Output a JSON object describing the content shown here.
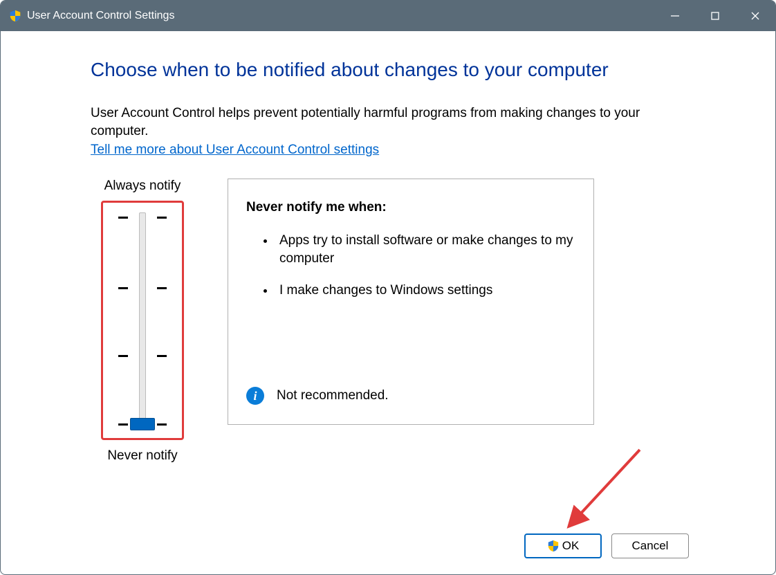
{
  "window": {
    "title": "User Account Control Settings",
    "titlebar_bg": "#5a6b78",
    "titlebar_fg": "#ffffff"
  },
  "heading": "Choose when to be notified about changes to your computer",
  "intro_text": "User Account Control helps prevent potentially harmful programs from making changes to your computer.",
  "help_link_text": "Tell me more about User Account Control settings",
  "slider": {
    "top_label": "Always notify",
    "bottom_label": "Never notify",
    "levels": 4,
    "current_level_index": 3,
    "track_color": "#e8e8e8",
    "thumb_color": "#0067c0",
    "highlight_border_color": "#e03b3b",
    "tick_positions_pct": [
      6,
      36,
      65,
      94
    ],
    "thumb_top_pct": 91.5
  },
  "description": {
    "title": "Never notify me when:",
    "bullets": [
      "Apps try to install software or make changes to my computer",
      "I make changes to Windows settings"
    ],
    "status_icon": "info",
    "status_text": "Not recommended."
  },
  "buttons": {
    "ok_label": "OK",
    "cancel_label": "Cancel"
  },
  "annotation": {
    "arrow_color": "#e03b3b"
  },
  "colors": {
    "heading": "#003399",
    "link": "#0066cc",
    "panel_border": "#b0b0b0",
    "info_icon_bg": "#0a7dd8",
    "primary_btn_border": "#0067c0"
  },
  "shield_colors": {
    "tl": "#2e7cd6",
    "tr": "#ffc400",
    "bl": "#ffc400",
    "br": "#2e7cd6"
  }
}
